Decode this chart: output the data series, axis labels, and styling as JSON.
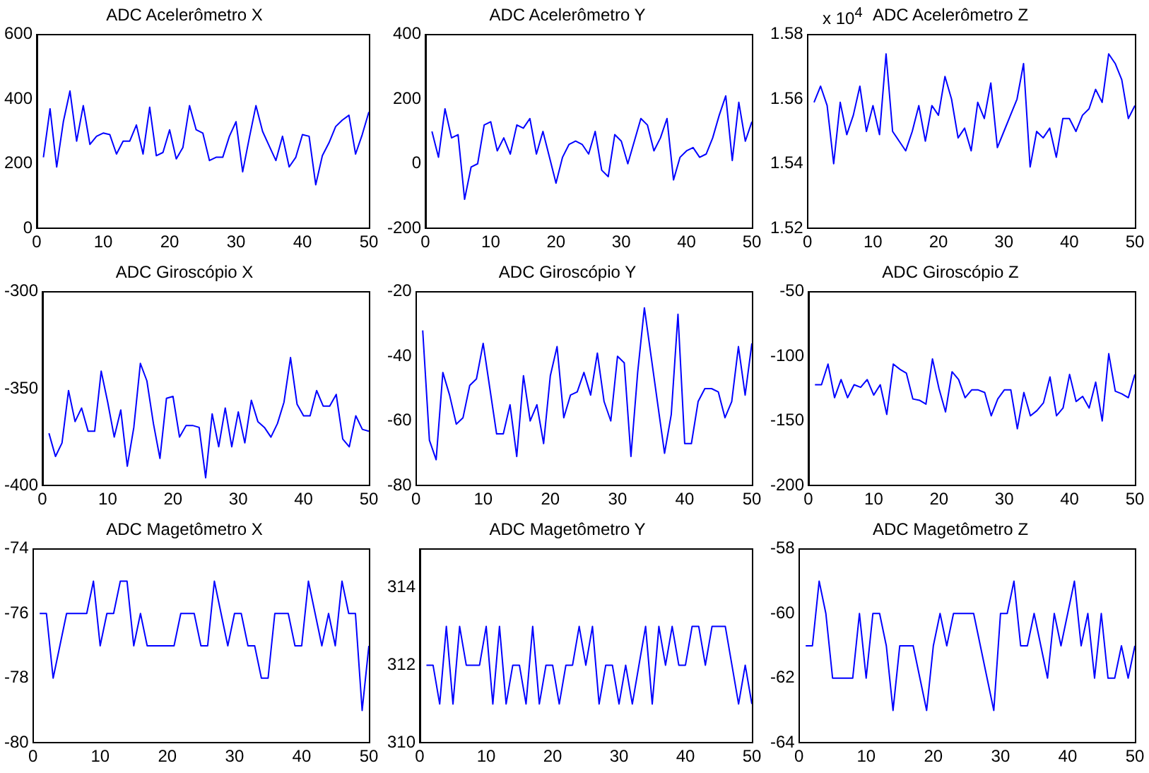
{
  "chart_data": [
    {
      "type": "line",
      "title": "ADC Acelerômetro X",
      "x": [
        1,
        2,
        3,
        4,
        5,
        6,
        7,
        8,
        9,
        10,
        11,
        12,
        13,
        14,
        15,
        16,
        17,
        18,
        19,
        20,
        21,
        22,
        23,
        24,
        25,
        26,
        27,
        28,
        29,
        30,
        31,
        32,
        33,
        34,
        35,
        36,
        37,
        38,
        39,
        40,
        41,
        42,
        43,
        44,
        45,
        46,
        47,
        48,
        49,
        50
      ],
      "xlim": [
        0,
        50
      ],
      "xticks": [
        0,
        10,
        20,
        30,
        40,
        50
      ],
      "ylim": [
        0,
        600
      ],
      "yticks": [
        0,
        200,
        400,
        600
      ],
      "series": [
        {
          "color": "#0000ff",
          "values": [
            220,
            370,
            190,
            330,
            425,
            270,
            380,
            260,
            285,
            295,
            290,
            230,
            270,
            270,
            320,
            230,
            375,
            225,
            235,
            305,
            215,
            250,
            380,
            305,
            295,
            210,
            220,
            220,
            285,
            330,
            175,
            280,
            380,
            300,
            255,
            210,
            285,
            190,
            220,
            290,
            285,
            135,
            225,
            265,
            315,
            335,
            350,
            230,
            290,
            360
          ]
        }
      ]
    },
    {
      "type": "line",
      "title": "ADC Acelerômetro Y",
      "x": [
        1,
        2,
        3,
        4,
        5,
        6,
        7,
        8,
        9,
        10,
        11,
        12,
        13,
        14,
        15,
        16,
        17,
        18,
        19,
        20,
        21,
        22,
        23,
        24,
        25,
        26,
        27,
        28,
        29,
        30,
        31,
        32,
        33,
        34,
        35,
        36,
        37,
        38,
        39,
        40,
        41,
        42,
        43,
        44,
        45,
        46,
        47,
        48,
        49,
        50
      ],
      "xlim": [
        0,
        50
      ],
      "xticks": [
        0,
        10,
        20,
        30,
        40,
        50
      ],
      "ylim": [
        -200,
        400
      ],
      "yticks": [
        -200,
        0,
        200,
        400
      ],
      "series": [
        {
          "color": "#0000ff",
          "values": [
            100,
            20,
            170,
            80,
            90,
            -110,
            -10,
            0,
            120,
            130,
            40,
            80,
            30,
            120,
            110,
            140,
            30,
            100,
            20,
            -60,
            20,
            60,
            70,
            60,
            30,
            100,
            -20,
            -40,
            90,
            70,
            0,
            70,
            140,
            120,
            40,
            80,
            140,
            -50,
            20,
            40,
            50,
            20,
            30,
            80,
            150,
            210,
            10,
            190,
            70,
            130
          ]
        }
      ]
    },
    {
      "type": "line",
      "title": "ADC Acelerômetro Z",
      "annotations": [
        "x 10$^{4}$"
      ],
      "x": [
        1,
        2,
        3,
        4,
        5,
        6,
        7,
        8,
        9,
        10,
        11,
        12,
        13,
        14,
        15,
        16,
        17,
        18,
        19,
        20,
        21,
        22,
        23,
        24,
        25,
        26,
        27,
        28,
        29,
        30,
        31,
        32,
        33,
        34,
        35,
        36,
        37,
        38,
        39,
        40,
        41,
        42,
        43,
        44,
        45,
        46,
        47,
        48,
        49,
        50
      ],
      "xlim": [
        0,
        50
      ],
      "xticks": [
        0,
        10,
        20,
        30,
        40,
        50
      ],
      "ylim": [
        1.52,
        1.58
      ],
      "yticks": [
        1.52,
        1.54,
        1.56,
        1.58
      ],
      "series": [
        {
          "color": "#0000ff",
          "values": [
            1.559,
            1.564,
            1.558,
            1.54,
            1.559,
            1.549,
            1.555,
            1.564,
            1.55,
            1.558,
            1.549,
            1.574,
            1.55,
            1.547,
            1.544,
            1.55,
            1.558,
            1.547,
            1.558,
            1.555,
            1.567,
            1.56,
            1.548,
            1.551,
            1.544,
            1.559,
            1.554,
            1.565,
            1.545,
            1.55,
            1.555,
            1.56,
            1.571,
            1.539,
            1.55,
            1.548,
            1.551,
            1.542,
            1.554,
            1.554,
            1.55,
            1.555,
            1.557,
            1.563,
            1.559,
            1.574,
            1.571,
            1.566,
            1.554,
            1.558
          ]
        }
      ]
    },
    {
      "type": "line",
      "title": "ADC Giroscópio X",
      "x": [
        1,
        2,
        3,
        4,
        5,
        6,
        7,
        8,
        9,
        10,
        11,
        12,
        13,
        14,
        15,
        16,
        17,
        18,
        19,
        20,
        21,
        22,
        23,
        24,
        25,
        26,
        27,
        28,
        29,
        30,
        31,
        32,
        33,
        34,
        35,
        36,
        37,
        38,
        39,
        40,
        41,
        42,
        43,
        44,
        45,
        46,
        47,
        48,
        49,
        50
      ],
      "xlim": [
        0,
        50
      ],
      "xticks": [
        0,
        10,
        20,
        30,
        40,
        50
      ],
      "ylim": [
        -400,
        -300
      ],
      "yticks": [
        -400,
        -350,
        -300
      ],
      "series": [
        {
          "color": "#0000ff",
          "values": [
            -373,
            -385,
            -378,
            -351,
            -367,
            -360,
            -372,
            -372,
            -341,
            -357,
            -375,
            -361,
            -390,
            -370,
            -337,
            -346,
            -368,
            -386,
            -355,
            -354,
            -375,
            -369,
            -369,
            -370,
            -396,
            -363,
            -380,
            -360,
            -380,
            -362,
            -378,
            -356,
            -367,
            -370,
            -375,
            -368,
            -357,
            -334,
            -358,
            -364,
            -364,
            -351,
            -359,
            -359,
            -353,
            -376,
            -380,
            -364,
            -371,
            -372
          ]
        }
      ]
    },
    {
      "type": "line",
      "title": "ADC Giroscópio Y",
      "x": [
        1,
        2,
        3,
        4,
        5,
        6,
        7,
        8,
        9,
        10,
        11,
        12,
        13,
        14,
        15,
        16,
        17,
        18,
        19,
        20,
        21,
        22,
        23,
        24,
        25,
        26,
        27,
        28,
        29,
        30,
        31,
        32,
        33,
        34,
        35,
        36,
        37,
        38,
        39,
        40,
        41,
        42,
        43,
        44,
        45,
        46,
        47,
        48,
        49,
        50
      ],
      "xlim": [
        0,
        50
      ],
      "xticks": [
        0,
        10,
        20,
        30,
        40,
        50
      ],
      "ylim": [
        -80,
        -20
      ],
      "yticks": [
        -80,
        -60,
        -40,
        -20
      ],
      "series": [
        {
          "color": "#0000ff",
          "values": [
            -32,
            -66,
            -72,
            -45,
            -52,
            -61,
            -59,
            -49,
            -47,
            -36,
            -50,
            -64,
            -64,
            -55,
            -71,
            -46,
            -60,
            -55,
            -67,
            -46,
            -37,
            -59,
            -52,
            -51,
            -45,
            -52,
            -39,
            -54,
            -60,
            -40,
            -42,
            -71,
            -45,
            -25,
            -40,
            -55,
            -70,
            -58,
            -27,
            -67,
            -67,
            -54,
            -50,
            -50,
            -51,
            -59,
            -54,
            -37,
            -52,
            -36
          ]
        }
      ]
    },
    {
      "type": "line",
      "title": "ADC Giroscópio Z",
      "x": [
        1,
        2,
        3,
        4,
        5,
        6,
        7,
        8,
        9,
        10,
        11,
        12,
        13,
        14,
        15,
        16,
        17,
        18,
        19,
        20,
        21,
        22,
        23,
        24,
        25,
        26,
        27,
        28,
        29,
        30,
        31,
        32,
        33,
        34,
        35,
        36,
        37,
        38,
        39,
        40,
        41,
        42,
        43,
        44,
        45,
        46,
        47,
        48,
        49,
        50
      ],
      "xlim": [
        0,
        50
      ],
      "xticks": [
        0,
        10,
        20,
        30,
        40,
        50
      ],
      "ylim": [
        -200,
        -50
      ],
      "yticks": [
        -200,
        -150,
        -100,
        -50
      ],
      "series": [
        {
          "color": "#0000ff",
          "values": [
            -122,
            -122,
            -106,
            -132,
            -118,
            -132,
            -122,
            -124,
            -118,
            -130,
            -122,
            -145,
            -106,
            -110,
            -113,
            -133,
            -134,
            -137,
            -102,
            -125,
            -143,
            -112,
            -118,
            -132,
            -126,
            -126,
            -128,
            -146,
            -133,
            -126,
            -126,
            -156,
            -128,
            -146,
            -142,
            -136,
            -116,
            -146,
            -140,
            -114,
            -135,
            -131,
            -140,
            -120,
            -150,
            -98,
            -127,
            -129,
            -132,
            -114
          ]
        }
      ]
    },
    {
      "type": "line",
      "title": "ADC Magetômetro X",
      "x": [
        1,
        2,
        3,
        4,
        5,
        6,
        7,
        8,
        9,
        10,
        11,
        12,
        13,
        14,
        15,
        16,
        17,
        18,
        19,
        20,
        21,
        22,
        23,
        24,
        25,
        26,
        27,
        28,
        29,
        30,
        31,
        32,
        33,
        34,
        35,
        36,
        37,
        38,
        39,
        40,
        41,
        42,
        43,
        44,
        45,
        46,
        47,
        48,
        49,
        50
      ],
      "xlim": [
        0,
        50
      ],
      "xticks": [
        0,
        10,
        20,
        30,
        40,
        50
      ],
      "ylim": [
        -80,
        -74
      ],
      "yticks": [
        -80,
        -78,
        -76,
        -74
      ],
      "series": [
        {
          "color": "#0000ff",
          "values": [
            -76,
            -76,
            -78,
            -77,
            -76,
            -76,
            -76,
            -76,
            -75,
            -77,
            -76,
            -76,
            -75,
            -75,
            -77,
            -76,
            -77,
            -77,
            -77,
            -77,
            -77,
            -76,
            -76,
            -76,
            -77,
            -77,
            -75,
            -76,
            -77,
            -76,
            -76,
            -77,
            -77,
            -78,
            -78,
            -76,
            -76,
            -76,
            -77,
            -77,
            -75,
            -76,
            -77,
            -76,
            -77,
            -75,
            -76,
            -76,
            -79,
            -77
          ]
        }
      ]
    },
    {
      "type": "line",
      "title": "ADC Magetômetro Y",
      "x": [
        1,
        2,
        3,
        4,
        5,
        6,
        7,
        8,
        9,
        10,
        11,
        12,
        13,
        14,
        15,
        16,
        17,
        18,
        19,
        20,
        21,
        22,
        23,
        24,
        25,
        26,
        27,
        28,
        29,
        30,
        31,
        32,
        33,
        34,
        35,
        36,
        37,
        38,
        39,
        40,
        41,
        42,
        43,
        44,
        45,
        46,
        47,
        48,
        49,
        50
      ],
      "xlim": [
        0,
        50
      ],
      "xticks": [
        0,
        10,
        20,
        30,
        40,
        50
      ],
      "ylim": [
        310,
        315
      ],
      "yticks": [
        310,
        312,
        314
      ],
      "series": [
        {
          "color": "#0000ff",
          "values": [
            312,
            312,
            311,
            313,
            311,
            313,
            312,
            312,
            312,
            313,
            311,
            313,
            311,
            312,
            312,
            311,
            313,
            311,
            312,
            312,
            311,
            312,
            312,
            313,
            312,
            313,
            311,
            312,
            312,
            311,
            312,
            311,
            312,
            313,
            311,
            313,
            312,
            313,
            312,
            312,
            313,
            313,
            312,
            313,
            313,
            313,
            312,
            311,
            312,
            311
          ]
        }
      ]
    },
    {
      "type": "line",
      "title": "ADC Magetômetro Z",
      "x": [
        1,
        2,
        3,
        4,
        5,
        6,
        7,
        8,
        9,
        10,
        11,
        12,
        13,
        14,
        15,
        16,
        17,
        18,
        19,
        20,
        21,
        22,
        23,
        24,
        25,
        26,
        27,
        28,
        29,
        30,
        31,
        32,
        33,
        34,
        35,
        36,
        37,
        38,
        39,
        40,
        41,
        42,
        43,
        44,
        45,
        46,
        47,
        48,
        49,
        50
      ],
      "xlim": [
        0,
        50
      ],
      "xticks": [
        0,
        10,
        20,
        30,
        40,
        50
      ],
      "ylim": [
        -64,
        -58
      ],
      "yticks": [
        -64,
        -62,
        -60,
        -58
      ],
      "series": [
        {
          "color": "#0000ff",
          "values": [
            -61,
            -61,
            -59,
            -60,
            -62,
            -62,
            -62,
            -62,
            -60,
            -62,
            -60,
            -60,
            -61,
            -63,
            -61,
            -61,
            -61,
            -62,
            -63,
            -61,
            -60,
            -61,
            -60,
            -60,
            -60,
            -60,
            -61,
            -62,
            -63,
            -60,
            -60,
            -59,
            -61,
            -61,
            -60,
            -61,
            -62,
            -60,
            -61,
            -60,
            -59,
            -61,
            -60,
            -62,
            -60,
            -62,
            -62,
            -61,
            -62,
            -61
          ]
        }
      ]
    }
  ]
}
